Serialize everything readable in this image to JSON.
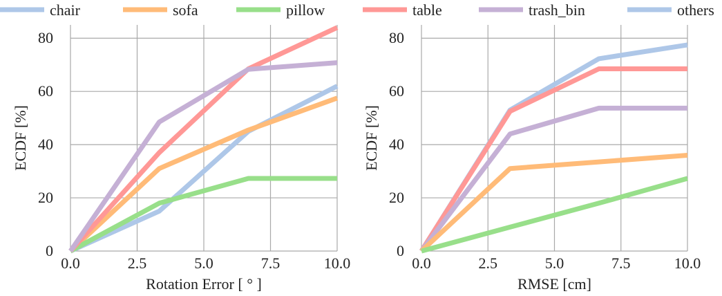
{
  "legend": {
    "placement": "top",
    "items": [
      {
        "label": "chair",
        "color": "#aec7e8"
      },
      {
        "label": "sofa",
        "color": "#ffbb78"
      },
      {
        "label": "pillow",
        "color": "#98df8a"
      },
      {
        "label": "table",
        "color": "#ff9896"
      },
      {
        "label": "trash_bin",
        "color": "#c5b0d5"
      },
      {
        "label": "others",
        "color": "#aec7e8"
      }
    ]
  },
  "chart_data": [
    {
      "type": "line",
      "xlabel": "Rotation Error [ ° ]",
      "ylabel": "ECDF [%]",
      "xlim": [
        0,
        10
      ],
      "ylim": [
        0,
        85
      ],
      "grid": true,
      "x_ticks": [
        "0.0",
        "2.5",
        "5.0",
        "7.5",
        "10.0"
      ],
      "y_ticks": [
        "0",
        "20",
        "40",
        "60",
        "80"
      ],
      "x_tick_values": [
        0,
        2.5,
        5,
        7.5,
        10
      ],
      "y_tick_values": [
        0,
        20,
        40,
        60,
        80
      ],
      "x": [
        0,
        3.33,
        6.67,
        10
      ],
      "series": [
        {
          "name": "chair",
          "color": "#aec7e8",
          "values": [
            0,
            15,
            45,
            62
          ]
        },
        {
          "name": "sofa",
          "color": "#ffbb78",
          "values": [
            0,
            31,
            45.5,
            57.5
          ]
        },
        {
          "name": "pillow",
          "color": "#98df8a",
          "values": [
            0,
            18,
            27.3,
            27.3
          ]
        },
        {
          "name": "table",
          "color": "#ff9896",
          "values": [
            0,
            37,
            68.5,
            84
          ]
        },
        {
          "name": "trash_bin",
          "color": "#c5b0d5",
          "values": [
            0,
            48.5,
            68.3,
            70.8
          ]
        }
      ]
    },
    {
      "type": "line",
      "xlabel": "RMSE [cm]",
      "ylabel": "ECDF [%]",
      "xlim": [
        0,
        10
      ],
      "ylim": [
        0,
        85
      ],
      "grid": true,
      "x_ticks": [
        "0.0",
        "2.5",
        "5.0",
        "7.5",
        "10.0"
      ],
      "y_ticks": [
        "0",
        "20",
        "40",
        "60",
        "80"
      ],
      "x_tick_values": [
        0,
        2.5,
        5,
        7.5,
        10
      ],
      "y_tick_values": [
        0,
        20,
        40,
        60,
        80
      ],
      "x": [
        0,
        3.33,
        6.67,
        10
      ],
      "series": [
        {
          "name": "others",
          "color": "#aec7e8",
          "values": [
            0,
            53,
            72.3,
            77.5
          ]
        },
        {
          "name": "table",
          "color": "#ff9896",
          "values": [
            0,
            52.5,
            68.5,
            68.5
          ]
        },
        {
          "name": "trash_bin",
          "color": "#c5b0d5",
          "values": [
            0,
            44,
            53.7,
            53.7
          ]
        },
        {
          "name": "sofa",
          "color": "#ffbb78",
          "values": [
            0,
            31,
            33.5,
            36
          ]
        },
        {
          "name": "pillow",
          "color": "#98df8a",
          "values": [
            0,
            9,
            18,
            27.3
          ]
        }
      ]
    }
  ]
}
